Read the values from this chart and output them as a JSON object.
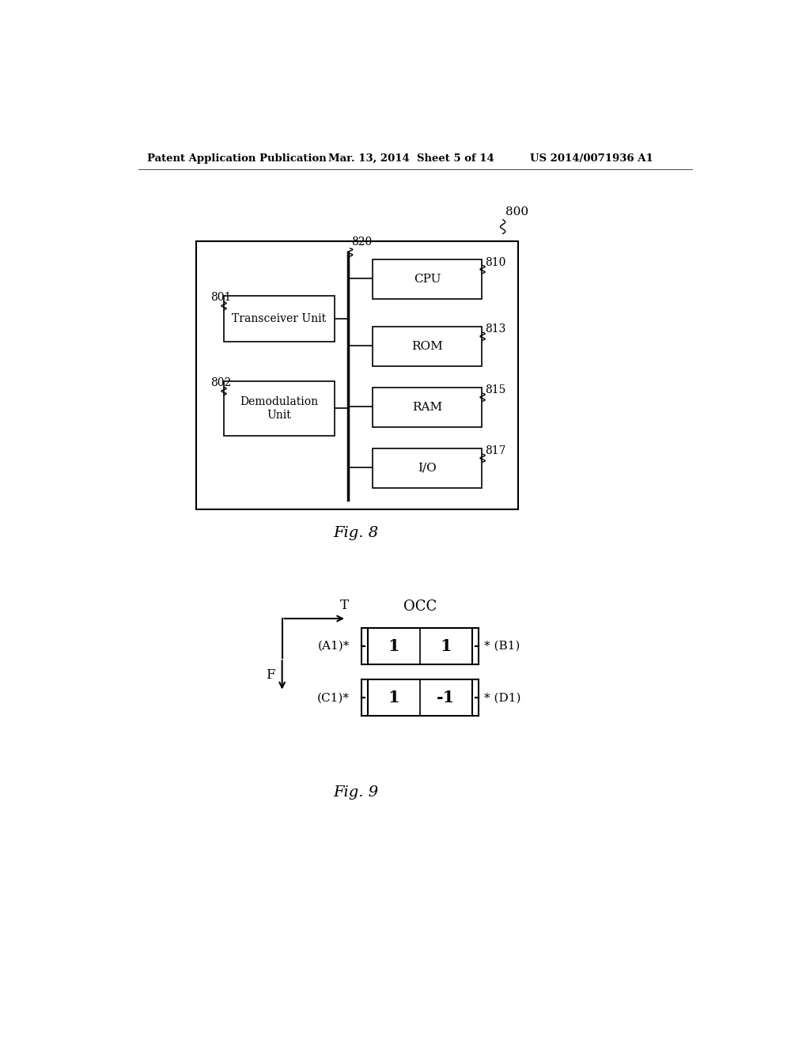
{
  "bg_color": "#ffffff",
  "header_left": "Patent Application Publication",
  "header_center": "Mar. 13, 2014  Sheet 5 of 14",
  "header_right": "US 2014/0071936 A1",
  "fig8_label": "Fig. 8",
  "fig9_label": "Fig. 9",
  "ref800": "800",
  "ref801": "801",
  "ref802": "802",
  "ref810": "810",
  "ref813": "813",
  "ref815": "815",
  "ref817": "817",
  "ref820": "820",
  "box_transceiver": "Transceiver Unit",
  "box_demodulation": "Demodulation\nUnit",
  "box_cpu": "CPU",
  "box_rom": "ROM",
  "box_ram": "RAM",
  "box_io": "I/O",
  "occ_label": "OCC",
  "T_label": "T",
  "F_label": "F",
  "row1_vals": [
    "1",
    "1"
  ],
  "row2_vals": [
    "1",
    "-1"
  ],
  "row1_left": "(A1)*",
  "row1_right": "* (B1)",
  "row2_left": "(C1)*",
  "row2_right": "* (D1)"
}
